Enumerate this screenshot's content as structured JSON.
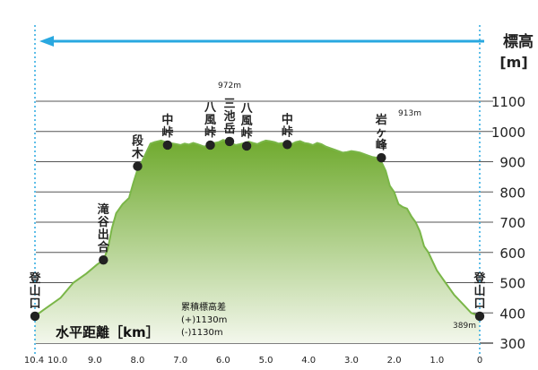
{
  "chart_data": {
    "type": "area",
    "title": "",
    "ylabel": "標高\n[m]",
    "xlabel": "水平距離［km］",
    "ylim": [
      300,
      1100
    ],
    "xlim": [
      10.4,
      0
    ],
    "x_ticks": [
      "10.4",
      "10.0",
      "9.0",
      "8.0",
      "7.0",
      "6.0",
      "5.0",
      "4.0",
      "3.0",
      "2.0",
      "1.0",
      "0"
    ],
    "x_tick_values": [
      10.4,
      10.0,
      9.0,
      8.0,
      7.0,
      6.0,
      5.0,
      4.0,
      3.0,
      2.0,
      1.0,
      0
    ],
    "y_ticks": [
      "300",
      "400",
      "500",
      "600",
      "700",
      "800",
      "900",
      "1000",
      "1100"
    ],
    "y_tick_values": [
      300,
      400,
      500,
      600,
      700,
      800,
      900,
      1000,
      1100
    ],
    "direction_arrow": "left",
    "colors": {
      "profile_line": "#7ab648",
      "fill_top": "#6faa2e",
      "fill_bottom": "#f3f7ec",
      "grid": "#555555",
      "arrow": "#29a8e0",
      "marker": "#222222"
    },
    "profile": {
      "x": [
        10.4,
        10.2,
        9.8,
        9.5,
        9.2,
        8.95,
        8.8,
        8.7,
        8.6,
        8.5,
        8.35,
        8.2,
        8.1,
        8.0,
        7.9,
        7.8,
        7.7,
        7.6,
        7.45,
        7.35,
        7.25,
        7.1,
        7.0,
        6.9,
        6.8,
        6.7,
        6.6,
        6.45,
        6.3,
        6.2,
        6.1,
        6.0,
        5.9,
        5.8,
        5.7,
        5.6,
        5.5,
        5.4,
        5.3,
        5.2,
        5.1,
        5.0,
        4.9,
        4.8,
        4.7,
        4.6,
        4.5,
        4.4,
        4.3,
        4.2,
        4.1,
        4.0,
        3.9,
        3.8,
        3.7,
        3.6,
        3.5,
        3.4,
        3.3,
        3.2,
        3.1,
        3.0,
        2.9,
        2.8,
        2.7,
        2.6,
        2.5,
        2.4,
        2.3,
        2.2,
        2.1,
        2.0,
        1.9,
        1.8,
        1.7,
        1.6,
        1.5,
        1.4,
        1.3,
        1.2,
        1.1,
        1.0,
        0.9,
        0.8,
        0.6,
        0.4,
        0.2,
        0.0
      ],
      "y": [
        389,
        410,
        450,
        500,
        530,
        560,
        575,
        610,
        680,
        730,
        760,
        780,
        830,
        875,
        900,
        930,
        960,
        965,
        970,
        965,
        962,
        958,
        955,
        960,
        957,
        962,
        958,
        950,
        955,
        962,
        965,
        972,
        968,
        960,
        955,
        958,
        962,
        966,
        962,
        958,
        965,
        970,
        968,
        965,
        960,
        962,
        955,
        958,
        965,
        968,
        962,
        960,
        955,
        962,
        958,
        950,
        945,
        940,
        935,
        930,
        932,
        935,
        933,
        930,
        925,
        920,
        915,
        913,
        900,
        870,
        820,
        800,
        760,
        750,
        745,
        720,
        700,
        670,
        620,
        600,
        570,
        540,
        520,
        500,
        460,
        430,
        400,
        389
      ]
    },
    "markers": [
      {
        "label": "登山口",
        "x": 10.4,
        "y": 389
      },
      {
        "label": "滝谷出合",
        "x": 8.8,
        "y": 575
      },
      {
        "label": "段木",
        "x": 8.0,
        "y": 885
      },
      {
        "label": "中峠",
        "x": 7.3,
        "y": 955
      },
      {
        "label": "八風峠",
        "x": 6.3,
        "y": 955
      },
      {
        "label": "三池岳",
        "x": 5.85,
        "y": 967
      },
      {
        "label": "八風峠",
        "x": 5.45,
        "y": 952
      },
      {
        "label": "中峠",
        "x": 4.5,
        "y": 957
      },
      {
        "label": "岩ヶ峰",
        "x": 2.3,
        "y": 913
      },
      {
        "label": "登山口",
        "x": 0.0,
        "y": 389
      }
    ],
    "annotations": {
      "peak_elevation": "972m",
      "right_peak_elevation": "913m",
      "end_elevation": "389m",
      "cumulative_title": "累積標高差",
      "cumulative_up": "(+)1130m",
      "cumulative_down": "(-)1130m"
    }
  }
}
